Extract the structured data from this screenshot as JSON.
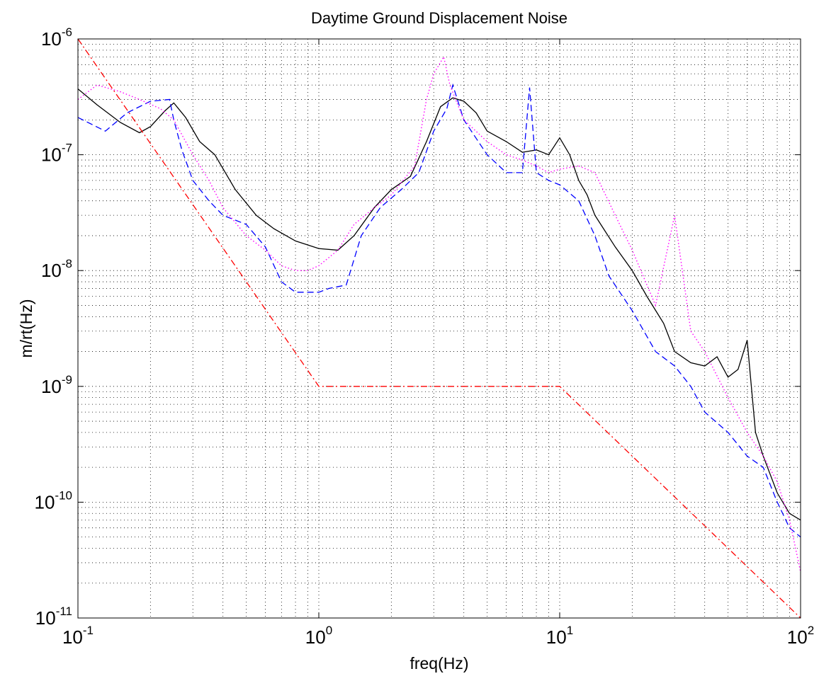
{
  "chart_data": {
    "type": "line",
    "title": "Daytime Ground Displacement Noise",
    "xlabel": "freq(Hz)",
    "ylabel": "m/rt(Hz)",
    "xscale": "log",
    "yscale": "log",
    "xlim": [
      0.1,
      100
    ],
    "ylim": [
      1e-11,
      1e-06
    ],
    "grid": true,
    "legend": "none",
    "x_ticks": [
      {
        "value": 0.1,
        "base": "10",
        "exp": "-1"
      },
      {
        "value": 1,
        "base": "10",
        "exp": "0"
      },
      {
        "value": 10,
        "base": "10",
        "exp": "1"
      },
      {
        "value": 100,
        "base": "10",
        "exp": "2"
      }
    ],
    "y_ticks": [
      {
        "value": 1e-11,
        "base": "10",
        "exp": "-11"
      },
      {
        "value": 1e-10,
        "base": "10",
        "exp": "-10"
      },
      {
        "value": 1e-09,
        "base": "10",
        "exp": "-9"
      },
      {
        "value": 1e-08,
        "base": "10",
        "exp": "-8"
      },
      {
        "value": 1e-07,
        "base": "10",
        "exp": "-7"
      },
      {
        "value": 1e-06,
        "base": "10",
        "exp": "-6"
      }
    ],
    "series": [
      {
        "color": "#000000",
        "style": "solid",
        "x": [
          0.1,
          0.12,
          0.15,
          0.18,
          0.2,
          0.23,
          0.25,
          0.28,
          0.32,
          0.37,
          0.45,
          0.55,
          0.65,
          0.8,
          1.0,
          1.2,
          1.4,
          1.7,
          2.0,
          2.4,
          2.8,
          3.2,
          3.6,
          4.0,
          4.5,
          5.0,
          6.0,
          7.0,
          8.0,
          9.0,
          10.0,
          11.0,
          12.0,
          13.0,
          14.0,
          15.0,
          17.0,
          20.0,
          23.0,
          27.0,
          30.0,
          35.0,
          40.0,
          45.0,
          50.0,
          55.0,
          60.0,
          65.0,
          70.0,
          80.0,
          90.0,
          100.0
        ],
        "y": [
          3.7e-07,
          2.7e-07,
          1.9e-07,
          1.55e-07,
          1.75e-07,
          2.4e-07,
          2.8e-07,
          2.1e-07,
          1.3e-07,
          1e-07,
          5e-08,
          3e-08,
          2.3e-08,
          1.8e-08,
          1.55e-08,
          1.5e-08,
          2e-08,
          3.5e-08,
          5e-08,
          6.5e-08,
          1.3e-07,
          2.6e-07,
          3.1e-07,
          2.9e-07,
          2.3e-07,
          1.6e-07,
          1.3e-07,
          1.05e-07,
          1.1e-07,
          1e-07,
          1.4e-07,
          1e-07,
          6e-08,
          4.5e-08,
          3e-08,
          2.4e-08,
          1.6e-08,
          1e-08,
          6e-09,
          3.5e-09,
          2e-09,
          1.6e-09,
          1.5e-09,
          1.8e-09,
          1.2e-09,
          1.4e-09,
          2.5e-09,
          4e-10,
          2.5e-10,
          1.2e-10,
          8e-11,
          7e-11
        ]
      },
      {
        "color": "#0000ff",
        "style": "dashed",
        "x": [
          0.1,
          0.13,
          0.16,
          0.2,
          0.24,
          0.25,
          0.27,
          0.3,
          0.35,
          0.4,
          0.5,
          0.6,
          0.7,
          0.8,
          0.9,
          1.0,
          1.1,
          1.3,
          1.5,
          1.8,
          2.2,
          2.6,
          3.0,
          3.4,
          3.6,
          4.0,
          5.0,
          6.0,
          7.0,
          7.5,
          8.0,
          9.0,
          10.0,
          12.0,
          14.0,
          16.0,
          20.0,
          25.0,
          30.0,
          35.0,
          40.0,
          50.0,
          60.0,
          70.0,
          80.0,
          90.0,
          100.0
        ],
        "y": [
          2.1e-07,
          1.6e-07,
          2.3e-07,
          2.9e-07,
          3e-07,
          2e-07,
          1.1e-07,
          6e-08,
          4e-08,
          3e-08,
          2.5e-08,
          1.6e-08,
          8e-09,
          6.5e-09,
          6.5e-09,
          6.5e-09,
          7e-09,
          7.5e-09,
          2e-08,
          3.5e-08,
          5e-08,
          7e-08,
          1.6e-07,
          2.5e-07,
          4e-07,
          2e-07,
          1e-07,
          7e-08,
          7e-08,
          3.8e-07,
          7e-08,
          6e-08,
          5.5e-08,
          4e-08,
          2e-08,
          9e-09,
          4.5e-09,
          2e-09,
          1.5e-09,
          1e-09,
          6e-10,
          4e-10,
          2.5e-10,
          2e-10,
          1e-10,
          6e-11,
          5e-11
        ]
      },
      {
        "color": "#ff00ff",
        "style": "dotted",
        "x": [
          0.1,
          0.12,
          0.15,
          0.18,
          0.22,
          0.25,
          0.3,
          0.35,
          0.4,
          0.5,
          0.6,
          0.7,
          0.8,
          0.9,
          1.0,
          1.2,
          1.4,
          1.7,
          2.0,
          2.5,
          2.8,
          3.0,
          3.3,
          3.5,
          4.0,
          5.0,
          6.0,
          7.0,
          8.0,
          9.0,
          10.0,
          12.0,
          14.0,
          17.0,
          20.0,
          25.0,
          30.0,
          35.0,
          40.0,
          50.0,
          60.0,
          70.0,
          80.0,
          90.0,
          100.0
        ],
        "y": [
          3e-07,
          4e-07,
          3.5e-07,
          3e-07,
          2.5e-07,
          2e-07,
          1e-07,
          6e-08,
          3.5e-08,
          2e-08,
          1.5e-08,
          1.1e-08,
          1e-08,
          1e-08,
          1.1e-08,
          1.5e-08,
          2.5e-08,
          3.5e-08,
          4.5e-08,
          8e-08,
          3e-07,
          5e-07,
          7e-07,
          4e-07,
          2e-07,
          1.3e-07,
          1e-07,
          9e-08,
          8e-08,
          7e-08,
          7.5e-08,
          8e-08,
          7e-08,
          3e-08,
          1.5e-08,
          5e-09,
          3e-08,
          3e-09,
          2e-09,
          8e-10,
          4e-10,
          2.5e-10,
          1.5e-10,
          7e-11,
          2.5e-11
        ]
      },
      {
        "color": "#ff0000",
        "style": "dashdot",
        "x": [
          0.1,
          1.0,
          10.0,
          100.0
        ],
        "y": [
          1e-06,
          1e-09,
          1e-09,
          1e-11
        ]
      }
    ]
  }
}
